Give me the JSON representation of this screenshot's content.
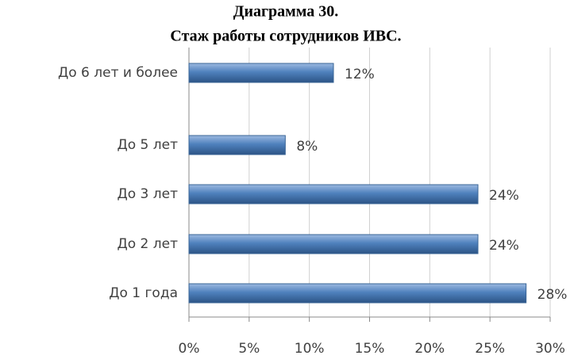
{
  "chart_data": {
    "type": "bar",
    "orientation": "horizontal",
    "title": "Диаграмма 30.",
    "subtitle": "Стаж работы сотрудников ИВС.",
    "categories": [
      "До 6 лет и более",
      "До 5 лет",
      "До 3 лет",
      "До 2 лет",
      "До 1 года"
    ],
    "values": [
      12,
      8,
      24,
      24,
      28
    ],
    "value_labels": [
      "12%",
      "8%",
      "24%",
      "24%",
      "28%"
    ],
    "color": "#4f81bd",
    "xlim": [
      0,
      30
    ],
    "xticks": [
      {
        "value": 0,
        "label": "0%"
      },
      {
        "value": 5,
        "label": "5%"
      },
      {
        "value": 10,
        "label": "10%"
      },
      {
        "value": 15,
        "label": "15%"
      },
      {
        "value": 20,
        "label": "20%"
      },
      {
        "value": 25,
        "label": "25%"
      },
      {
        "value": 30,
        "label": "30%"
      }
    ],
    "grid": true
  }
}
